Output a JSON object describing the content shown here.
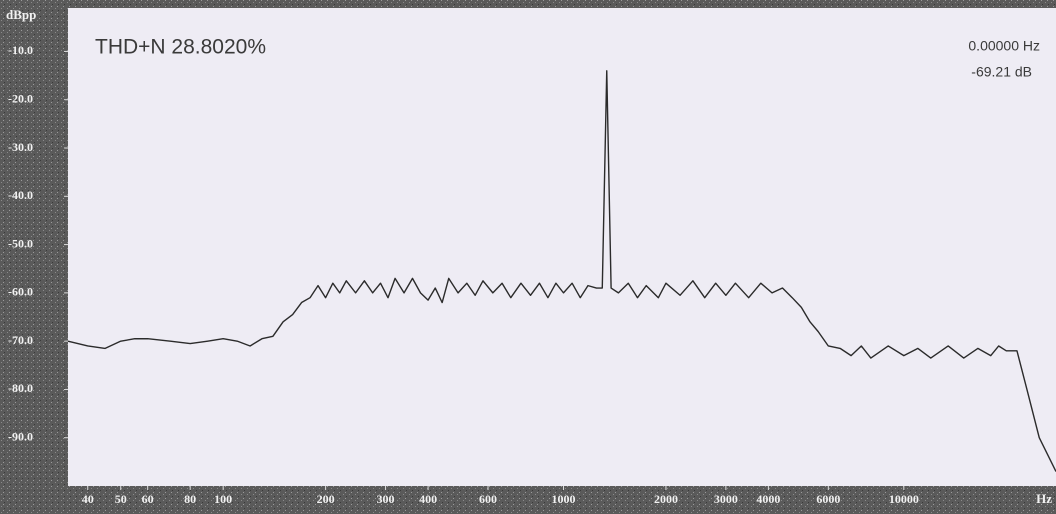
{
  "chart_data": {
    "type": "line",
    "annotations": [
      "THD+N 28.8020%",
      "0.00000 Hz",
      "-69.21 dB"
    ],
    "ylabel": "dBpp",
    "xlabel": "Hz",
    "log_x": true,
    "grid": false,
    "xlim": [
      35,
      28000
    ],
    "ylim": [
      -100,
      -1
    ],
    "xticks": [
      40,
      50,
      60,
      80,
      100,
      200,
      300,
      400,
      600,
      1000,
      2000,
      3000,
      4000,
      6000,
      10000
    ],
    "yticks": [
      {
        "value": -10,
        "label": "-10.0"
      },
      {
        "value": -20,
        "label": "-20.0"
      },
      {
        "value": -30,
        "label": "-30.0"
      },
      {
        "value": -40,
        "label": "-40.0"
      },
      {
        "value": -50,
        "label": "-50.0"
      },
      {
        "value": -60,
        "label": "-60.0"
      },
      {
        "value": -70,
        "label": "-70.0"
      },
      {
        "value": -80,
        "label": "-80.0"
      },
      {
        "value": -90,
        "label": "-90.0"
      }
    ],
    "x": [
      35,
      40,
      45,
      50,
      55,
      60,
      70,
      80,
      90,
      100,
      110,
      120,
      130,
      140,
      150,
      160,
      170,
      180,
      190,
      200,
      210,
      220,
      230,
      245,
      260,
      275,
      290,
      305,
      320,
      340,
      360,
      380,
      400,
      420,
      440,
      460,
      490,
      520,
      550,
      580,
      620,
      660,
      700,
      750,
      800,
      850,
      900,
      950,
      1000,
      1060,
      1120,
      1180,
      1250,
      1300,
      1340,
      1380,
      1450,
      1550,
      1650,
      1750,
      1900,
      2000,
      2200,
      2400,
      2600,
      2800,
      3000,
      3200,
      3500,
      3800,
      4100,
      4400,
      4700,
      5000,
      5300,
      5600,
      6000,
      6500,
      7000,
      7500,
      8000,
      9000,
      10000,
      11000,
      12000,
      13500,
      15000,
      16500,
      18000,
      19000,
      20000,
      21500,
      23000,
      25000,
      28000
    ],
    "series": [
      {
        "color": "#2b2b2b",
        "values": [
          -70,
          -71,
          -71.5,
          -70,
          -69.5,
          -69.5,
          -70,
          -70.5,
          -70,
          -69.5,
          -70,
          -71,
          -69.5,
          -69,
          -66,
          -64.5,
          -62,
          -61,
          -58.5,
          -61,
          -58,
          -60,
          -57.5,
          -60,
          -57.5,
          -60,
          -58,
          -61,
          -57,
          -60,
          -57,
          -60,
          -61.5,
          -59,
          -62,
          -57,
          -60,
          -58,
          -60.5,
          -57.5,
          -60,
          -58,
          -61,
          -58,
          -60.5,
          -58,
          -61,
          -58,
          -60,
          -58,
          -61,
          -58.5,
          -59,
          -59,
          -14,
          -59,
          -60,
          -58,
          -61,
          -58.5,
          -61,
          -58,
          -60.5,
          -57.5,
          -61,
          -58,
          -60.5,
          -58,
          -61,
          -58,
          -60,
          -59,
          -61,
          -63,
          -66,
          -68,
          -71,
          -71.5,
          -73,
          -71,
          -73.5,
          -71,
          -73,
          -71.5,
          -73.5,
          -71,
          -73.5,
          -71.5,
          -73,
          -71,
          -72,
          -72,
          -80,
          -90,
          -97
        ]
      }
    ]
  }
}
